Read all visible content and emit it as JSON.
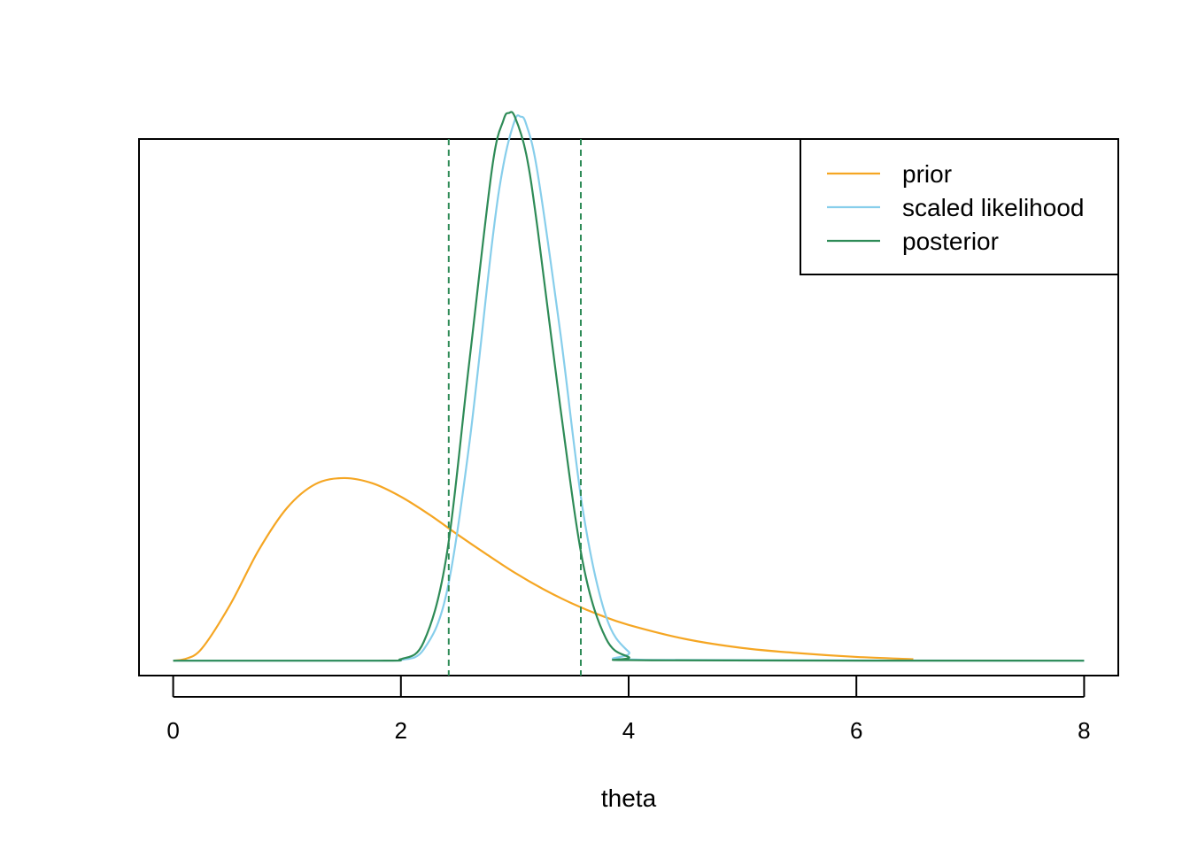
{
  "chart_data": {
    "type": "line",
    "title": "",
    "xlabel": "theta",
    "ylabel": "",
    "xlim": [
      -0.3,
      8.3
    ],
    "ylim": [
      -0.02,
      0.7
    ],
    "x_ticks": [
      "0",
      "2",
      "4",
      "6",
      "8"
    ],
    "grid": false,
    "legend_position": "top-right",
    "series": [
      {
        "name": "prior",
        "color": "#F5A623",
        "x": [
          0,
          0.1,
          0.25,
          0.5,
          0.75,
          1.0,
          1.25,
          1.5,
          1.75,
          2.0,
          2.25,
          2.5,
          2.75,
          3.0,
          3.25,
          3.5,
          3.75,
          4.0,
          4.5,
          5.0,
          5.5,
          6.0,
          6.5
        ],
        "y": [
          0,
          0.002,
          0.016,
          0.075,
          0.148,
          0.205,
          0.237,
          0.245,
          0.238,
          0.22,
          0.196,
          0.169,
          0.143,
          0.118,
          0.096,
          0.077,
          0.061,
          0.048,
          0.029,
          0.017,
          0.01,
          0.005,
          0.002
        ]
      },
      {
        "name": "scaled likelihood",
        "color": "#87CEEB",
        "x": [
          0,
          1.8,
          2.0,
          2.2,
          2.4,
          2.6,
          2.8,
          2.9,
          3.0,
          3.05,
          3.1,
          3.2,
          3.4,
          3.6,
          3.8,
          4.0,
          4.2,
          8.0
        ],
        "y": [
          0,
          0,
          0.001,
          0.015,
          0.09,
          0.29,
          0.56,
          0.665,
          0.725,
          0.73,
          0.72,
          0.655,
          0.44,
          0.2,
          0.06,
          0.012,
          0.001,
          0
        ]
      },
      {
        "name": "posterior",
        "color": "#2E8B57",
        "x": [
          0,
          1.8,
          2.0,
          2.2,
          2.4,
          2.6,
          2.8,
          2.9,
          2.95,
          3.0,
          3.1,
          3.2,
          3.4,
          3.6,
          3.8,
          4.0,
          4.2,
          8.0
        ],
        "y": [
          0,
          0,
          0.002,
          0.025,
          0.14,
          0.4,
          0.66,
          0.725,
          0.735,
          0.73,
          0.68,
          0.58,
          0.34,
          0.13,
          0.03,
          0.005,
          0.0005,
          0
        ]
      }
    ],
    "vlines": [
      {
        "x": 2.42,
        "color": "#2E8B57",
        "style": "dashed"
      },
      {
        "x": 3.58,
        "color": "#2E8B57",
        "style": "dashed"
      }
    ]
  }
}
